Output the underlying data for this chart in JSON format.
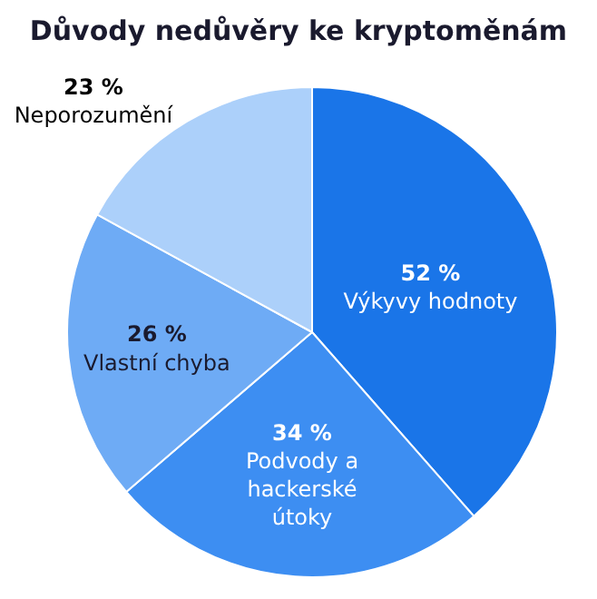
{
  "chart_data": {
    "type": "pie",
    "title": "Důvody nedůvěry ke kryptoměnám",
    "categories": [
      "Výkyvy hodnoty",
      "Podvody a hackerské útoky",
      "Vlastní chyba",
      "Neporozumění"
    ],
    "values": [
      52,
      34,
      26,
      23
    ],
    "value_labels": [
      "52 %",
      "34 %",
      "26 %",
      "23 %"
    ],
    "colors": [
      "#1a75e8",
      "#3d8ef2",
      "#6eabf5",
      "#acd0fa"
    ],
    "legend": false
  }
}
